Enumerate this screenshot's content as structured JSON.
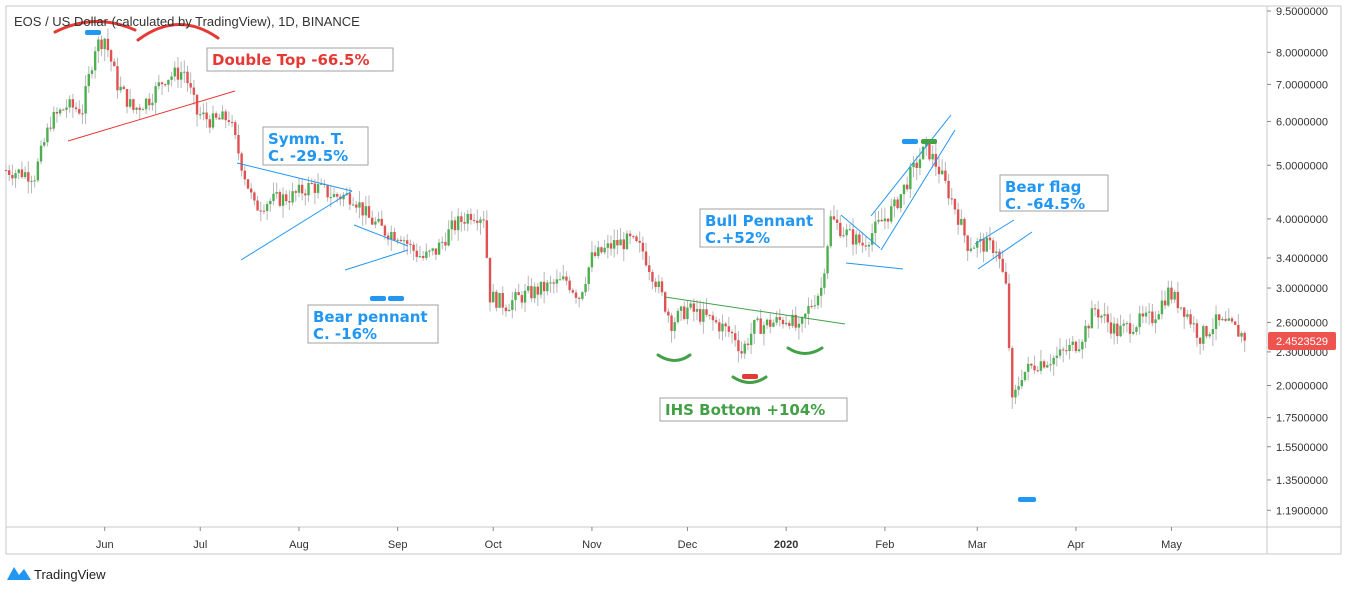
{
  "header": {
    "title": "EOS / US Dollar (calculated by TradingView), 1D, BINANCE"
  },
  "footer": {
    "brand": "TradingView",
    "brand_icon": "tradingview-logo-icon"
  },
  "colors": {
    "up": "#4caf50",
    "down": "#e05151",
    "wick": "#b7b7b7",
    "red_annotation": "#e53935",
    "blue_annotation": "#2196f3",
    "green_annotation": "#43a047",
    "price_badge": "#ef5350"
  },
  "chart_data": {
    "type": "candlestick",
    "y_scale": "log",
    "ylim": [
      1.11,
      9.7
    ],
    "y_ticks": [
      "9.5000000",
      "8.0000000",
      "7.0000000",
      "6.0000000",
      "5.0000000",
      "4.0000000",
      "3.4000000",
      "3.0000000",
      "2.6000000",
      "2.3000000",
      "2.0000000",
      "1.7500000",
      "1.5500000",
      "1.3500000",
      "1.1900000"
    ],
    "x_range": [
      "2019-05-01",
      "2020-05-31"
    ],
    "x_ticks": [
      {
        "label": "Jun",
        "date": "2019-06-01"
      },
      {
        "label": "Jul",
        "date": "2019-07-01"
      },
      {
        "label": "Aug",
        "date": "2019-08-01"
      },
      {
        "label": "Sep",
        "date": "2019-09-01"
      },
      {
        "label": "Oct",
        "date": "2019-10-01"
      },
      {
        "label": "Nov",
        "date": "2019-11-01"
      },
      {
        "label": "Dec",
        "date": "2019-12-01"
      },
      {
        "label": "2020",
        "date": "2020-01-01",
        "bold": true
      },
      {
        "label": "Feb",
        "date": "2020-02-01"
      },
      {
        "label": "Mar",
        "date": "2020-03-01"
      },
      {
        "label": "Apr",
        "date": "2020-04-01"
      },
      {
        "label": "May",
        "date": "2020-05-01"
      }
    ],
    "last_price": "2.4523529",
    "price_anchors": [
      [
        "2019-05-01",
        4.9
      ],
      [
        "2019-05-06",
        4.85
      ],
      [
        "2019-05-10",
        4.8
      ],
      [
        "2019-05-15",
        6.0
      ],
      [
        "2019-05-20",
        6.4
      ],
      [
        "2019-05-25",
        6.3
      ],
      [
        "2019-05-29",
        8.2
      ],
      [
        "2019-06-01",
        8.5
      ],
      [
        "2019-06-05",
        7.0
      ],
      [
        "2019-06-10",
        6.3
      ],
      [
        "2019-06-15",
        6.6
      ],
      [
        "2019-06-20",
        7.2
      ],
      [
        "2019-06-26",
        7.4
      ],
      [
        "2019-06-30",
        6.2
      ],
      [
        "2019-07-05",
        6.0
      ],
      [
        "2019-07-10",
        6.1
      ],
      [
        "2019-07-15",
        4.8
      ],
      [
        "2019-07-18",
        4.2
      ],
      [
        "2019-07-22",
        4.3
      ],
      [
        "2019-07-30",
        4.4
      ],
      [
        "2019-08-05",
        4.6
      ],
      [
        "2019-08-12",
        4.4
      ],
      [
        "2019-08-18",
        4.4
      ],
      [
        "2019-08-23",
        4.0
      ],
      [
        "2019-08-28",
        3.8
      ],
      [
        "2019-09-02",
        3.75
      ],
      [
        "2019-09-05",
        3.55
      ],
      [
        "2019-09-09",
        3.4
      ],
      [
        "2019-09-13",
        3.5
      ],
      [
        "2019-09-18",
        3.85
      ],
      [
        "2019-09-24",
        4.1
      ],
      [
        "2019-09-28",
        4.05
      ],
      [
        "2019-09-30",
        2.9
      ],
      [
        "2019-10-05",
        2.8
      ],
      [
        "2019-10-10",
        2.9
      ],
      [
        "2019-10-17",
        3.0
      ],
      [
        "2019-10-24",
        3.1
      ],
      [
        "2019-10-28",
        2.9
      ],
      [
        "2019-11-01",
        3.4
      ],
      [
        "2019-11-08",
        3.6
      ],
      [
        "2019-11-13",
        3.65
      ],
      [
        "2019-11-17",
        3.5
      ],
      [
        "2019-11-22",
        3.0
      ],
      [
        "2019-11-26",
        2.6
      ],
      [
        "2019-12-01",
        2.75
      ],
      [
        "2019-12-07",
        2.65
      ],
      [
        "2019-12-12",
        2.55
      ],
      [
        "2019-12-16",
        2.45
      ],
      [
        "2019-12-18",
        2.3
      ],
      [
        "2019-12-22",
        2.55
      ],
      [
        "2019-12-28",
        2.6
      ],
      [
        "2020-01-02",
        2.65
      ],
      [
        "2020-01-05",
        2.5
      ],
      [
        "2020-01-08",
        2.75
      ],
      [
        "2020-01-12",
        3.0
      ],
      [
        "2020-01-15",
        4.0
      ],
      [
        "2020-01-19",
        3.8
      ],
      [
        "2020-01-25",
        3.6
      ],
      [
        "2020-01-30",
        3.9
      ],
      [
        "2020-02-04",
        4.2
      ],
      [
        "2020-02-09",
        4.8
      ],
      [
        "2020-02-14",
        5.4
      ],
      [
        "2020-02-18",
        4.9
      ],
      [
        "2020-02-23",
        4.2
      ],
      [
        "2020-02-27",
        3.6
      ],
      [
        "2020-03-02",
        3.6
      ],
      [
        "2020-03-07",
        3.55
      ],
      [
        "2020-03-10",
        3.0
      ],
      [
        "2020-03-12",
        1.85
      ],
      [
        "2020-03-15",
        2.1
      ],
      [
        "2020-03-20",
        2.2
      ],
      [
        "2020-03-26",
        2.25
      ],
      [
        "2020-04-02",
        2.4
      ],
      [
        "2020-04-07",
        2.75
      ],
      [
        "2020-04-14",
        2.5
      ],
      [
        "2020-04-20",
        2.6
      ],
      [
        "2020-04-25",
        2.65
      ],
      [
        "2020-04-30",
        2.95
      ],
      [
        "2020-05-05",
        2.75
      ],
      [
        "2020-05-10",
        2.45
      ],
      [
        "2020-05-15",
        2.6
      ],
      [
        "2020-05-20",
        2.55
      ],
      [
        "2020-05-24",
        2.45
      ]
    ],
    "annotations": [
      {
        "label": "Double Top -66.5%",
        "color": "red"
      },
      {
        "label": "Symm. T.\nC. -29.5%",
        "color": "blue"
      },
      {
        "label": "Bear pennant\nC. -16%",
        "color": "blue"
      },
      {
        "label": "IHS Bottom +104%",
        "color": "green"
      },
      {
        "label": "Bull Pennant\nC.+52%",
        "color": "blue"
      },
      {
        "label": "Bear flag\nC. -64.5%",
        "color": "blue"
      }
    ]
  }
}
